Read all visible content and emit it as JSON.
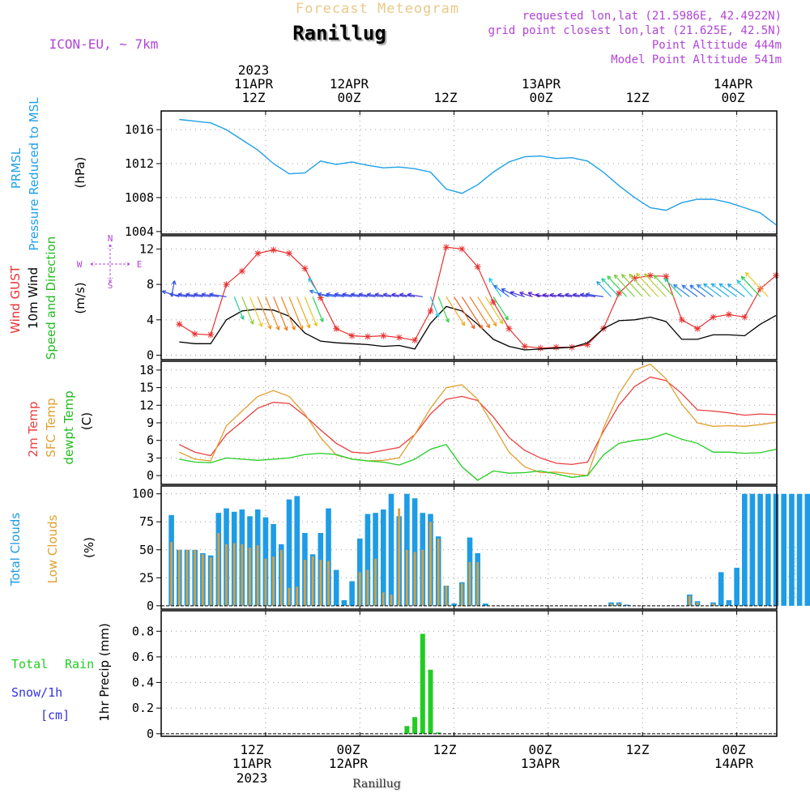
{
  "header": {
    "subtitle": "Forecast Meteogram",
    "station": "Ranillug",
    "model": "ICON-EU, ~ 7km",
    "requested": "requested lon,lat (21.5986E, 42.4922N)",
    "grid_point": "grid point closest lon,lat (21.625E, 42.5N)",
    "point_alt": "Point Altitude 444m",
    "model_alt": "Model Point Altitude 541m",
    "footer_station": "Ranillug",
    "watermark": "by Angel"
  },
  "time_axis": {
    "top_labels": [
      {
        "hour": 12,
        "lines": [
          "2023",
          "11APR",
          "12Z"
        ]
      },
      {
        "hour": 24,
        "lines": [
          "12APR",
          "00Z"
        ]
      },
      {
        "hour": 36,
        "lines": [
          "12Z"
        ]
      },
      {
        "hour": 48,
        "lines": [
          "13APR",
          "00Z"
        ]
      },
      {
        "hour": 60,
        "lines": [
          "12Z"
        ]
      },
      {
        "hour": 72,
        "lines": [
          "14APR",
          "00Z"
        ]
      }
    ],
    "bottom_labels": [
      {
        "hour": 12,
        "lines": [
          "12Z",
          "11APR",
          "2023"
        ]
      },
      {
        "hour": 24,
        "lines": [
          "00Z",
          "12APR"
        ]
      },
      {
        "hour": 36,
        "lines": [
          "12Z"
        ]
      },
      {
        "hour": 48,
        "lines": [
          "00Z",
          "13APR"
        ]
      },
      {
        "hour": 60,
        "lines": [
          "12Z"
        ]
      },
      {
        "hour": 72,
        "lines": [
          "00Z",
          "14APR"
        ]
      }
    ],
    "start": "2023-04-11 00Z",
    "range_hours": [
      1,
      77
    ]
  },
  "colors": {
    "pressure": "#1fa0e8",
    "gust": "#e83030",
    "wind": "#000000",
    "temp2m": "#e84040",
    "sfc": "#e0a030",
    "dewpt": "#22cc22",
    "total_cloud": "#1e9ce6",
    "low_cloud": "#d8a040",
    "rain": "#22cc22",
    "snow": "#3333dd",
    "label_purple": "#b044d8",
    "label_orange": "#e0b050"
  },
  "panels": {
    "pressure": {
      "labels": [
        "PRMSL",
        "Pressure Reduced to MSL"
      ],
      "unit": "(hPa)",
      "ticks": [
        "1004",
        "1008",
        "1012",
        "1016"
      ]
    },
    "wind": {
      "labels": [
        "Wind GUST",
        "10m Wind",
        "Speed and Direction"
      ],
      "unit": "(m/s)",
      "ticks": [
        "0",
        "4",
        "8",
        "12"
      ],
      "compass": {
        "n": "N",
        "s": "S",
        "w": "W",
        "e": "E"
      }
    },
    "temp": {
      "labels": [
        "2m Temp",
        "SFC Temp",
        "dewpt Temp"
      ],
      "unit": "(C)",
      "ticks": [
        "0",
        "3",
        "6",
        "9",
        "12",
        "15",
        "18"
      ]
    },
    "clouds": {
      "labels": [
        "Total Clouds",
        "Low Clouds"
      ],
      "unit": "(%)",
      "ticks": [
        "0",
        "25",
        "50",
        "75",
        "100"
      ]
    },
    "precip": {
      "labels": [
        "Total",
        "Rain",
        "Snow/1h",
        "[cm]"
      ],
      "unit": "1hr Precip (mm)",
      "ticks": [
        "0",
        "0.2",
        "0.4",
        "0.6",
        "0.8"
      ]
    }
  },
  "chart_data": [
    {
      "type": "line",
      "title": "PRMSL Pressure Reduced to MSL",
      "ylabel": "hPa",
      "ylim": [
        1003.7,
        1018.2
      ],
      "x": [
        1,
        3,
        5,
        7,
        9,
        11,
        13,
        15,
        17,
        19,
        21,
        23,
        25,
        27,
        29,
        31,
        33,
        35,
        37,
        39,
        41,
        43,
        45,
        47,
        49,
        51,
        53,
        55,
        57,
        59,
        61,
        63,
        65,
        67,
        69,
        71,
        73,
        75,
        77
      ],
      "values": [
        1017.2,
        1017.0,
        1016.8,
        1016.0,
        1014.8,
        1013.6,
        1012.0,
        1010.8,
        1010.9,
        1012.3,
        1011.9,
        1012.2,
        1011.8,
        1011.5,
        1011.6,
        1011.4,
        1011.0,
        1009.0,
        1008.5,
        1009.5,
        1011.0,
        1012.2,
        1012.8,
        1012.9,
        1012.6,
        1012.7,
        1012.3,
        1011.0,
        1009.4,
        1008.0,
        1006.8,
        1006.5,
        1007.4,
        1007.8,
        1007.8,
        1007.4,
        1006.8,
        1006.2,
        1004.8
      ]
    },
    {
      "type": "line",
      "title": "Wind GUST / 10m Wind",
      "ylabel": "m/s",
      "ylim": [
        -0.5,
        13.5
      ],
      "x": [
        1,
        3,
        5,
        7,
        9,
        11,
        13,
        15,
        17,
        19,
        21,
        23,
        25,
        27,
        29,
        31,
        33,
        35,
        37,
        39,
        41,
        43,
        45,
        47,
        49,
        51,
        53,
        55,
        57,
        59,
        61,
        63,
        65,
        67,
        69,
        71,
        73,
        75,
        77
      ],
      "series": [
        {
          "name": "Wind GUST",
          "values": [
            3.5,
            2.4,
            2.3,
            8.0,
            9.5,
            11.5,
            11.9,
            11.5,
            9.8,
            6.5,
            3.0,
            2.2,
            2.1,
            2.2,
            2.0,
            1.7,
            5.0,
            12.2,
            12.0,
            10.0,
            6.0,
            3.0,
            1.0,
            0.8,
            0.9,
            0.9,
            1.2,
            3.0,
            7.0,
            8.7,
            9.0,
            8.9,
            4.0,
            3.0,
            4.3,
            4.6,
            4.3,
            7.5,
            9.0
          ]
        },
        {
          "name": "10m Wind",
          "values": [
            1.5,
            1.3,
            1.3,
            4.0,
            5.0,
            5.2,
            5.1,
            4.4,
            2.5,
            1.6,
            1.4,
            1.3,
            1.2,
            1.0,
            1.1,
            0.7,
            3.6,
            5.5,
            5.0,
            3.5,
            1.8,
            1.0,
            0.6,
            0.7,
            0.8,
            0.9,
            1.4,
            3.0,
            3.9,
            4.0,
            4.3,
            3.8,
            1.8,
            1.8,
            2.3,
            2.3,
            2.2,
            3.5,
            4.5
          ]
        }
      ],
      "wind_arrows": {
        "hours": [
          0,
          1,
          2,
          3,
          4,
          5,
          6,
          7,
          8,
          9,
          10,
          11,
          12,
          13,
          14,
          15,
          16,
          17,
          18,
          19,
          20,
          21,
          22,
          23,
          24,
          25,
          26,
          27,
          28,
          29,
          30,
          31,
          32,
          33,
          34,
          35,
          36,
          37,
          38,
          39,
          40,
          41,
          42,
          43,
          44,
          45,
          46,
          47,
          48,
          49,
          50,
          51,
          52,
          53,
          54,
          55,
          56,
          57,
          58,
          59,
          60,
          61,
          62,
          63,
          64,
          65,
          66,
          67,
          68,
          69,
          70,
          71,
          72,
          73,
          74,
          75,
          76
        ],
        "speed_ms": [
          1.5,
          1.5,
          1.4,
          1.3,
          1.3,
          1.3,
          1.3,
          1.3,
          3.0,
          4.0,
          4.5,
          5.0,
          5.2,
          5.3,
          5.2,
          5.1,
          4.8,
          4.4,
          3.5,
          2.5,
          1.8,
          1.6,
          1.5,
          1.4,
          1.4,
          1.3,
          1.3,
          1.2,
          1.2,
          1.1,
          1.0,
          1.0,
          1.0,
          2.5,
          3.6,
          4.8,
          5.5,
          5.5,
          5.3,
          4.9,
          4.4,
          3.5,
          2.5,
          1.8,
          1.4,
          1.0,
          0.7,
          0.6,
          0.6,
          0.7,
          0.8,
          0.8,
          0.9,
          0.9,
          1.0,
          1.4,
          2.2,
          3.0,
          3.6,
          3.9,
          4.0,
          4.1,
          4.3,
          4.2,
          3.8,
          3.0,
          2.0,
          1.8,
          1.8,
          2.0,
          2.3,
          2.3,
          2.3,
          2.2,
          2.5,
          3.5,
          4.5
        ],
        "dir_deg": [
          190,
          110,
          100,
          100,
          100,
          100,
          100,
          100,
          340,
          340,
          340,
          340,
          340,
          340,
          340,
          340,
          340,
          340,
          340,
          150,
          110,
          100,
          100,
          100,
          100,
          100,
          100,
          100,
          100,
          100,
          100,
          100,
          100,
          340,
          340,
          330,
          330,
          330,
          330,
          330,
          330,
          330,
          150,
          130,
          120,
          110,
          110,
          110,
          100,
          100,
          100,
          100,
          100,
          100,
          100,
          100,
          140,
          140,
          140,
          140,
          140,
          140,
          140,
          140,
          140,
          140,
          130,
          130,
          130,
          130,
          130,
          130,
          130,
          130,
          140,
          140,
          140
        ]
      }
    },
    {
      "type": "line",
      "title": "2m Temp / SFC Temp / dewpt Temp",
      "ylabel": "C",
      "ylim": [
        -1.5,
        19.5
      ],
      "x": [
        1,
        3,
        5,
        7,
        9,
        11,
        13,
        15,
        17,
        19,
        21,
        23,
        25,
        27,
        29,
        31,
        33,
        35,
        37,
        39,
        41,
        43,
        45,
        47,
        49,
        51,
        53,
        55,
        57,
        59,
        61,
        63,
        65,
        67,
        69,
        71,
        73,
        75,
        77
      ],
      "series": [
        {
          "name": "2m Temp",
          "values": [
            5.3,
            4.0,
            3.4,
            7.0,
            9.2,
            11.5,
            12.5,
            12.3,
            10.2,
            7.8,
            5.5,
            4.0,
            3.8,
            4.3,
            4.8,
            7.0,
            10.5,
            13.0,
            13.5,
            12.8,
            10.0,
            6.5,
            4.3,
            3.0,
            2.1,
            1.9,
            2.3,
            7.5,
            12.0,
            15.2,
            16.8,
            16.2,
            14.0,
            11.2,
            11.0,
            10.7,
            10.3,
            10.5,
            10.4
          ]
        },
        {
          "name": "SFC Temp",
          "values": [
            4.0,
            2.8,
            2.5,
            8.5,
            11.0,
            13.5,
            14.5,
            13.5,
            10.5,
            6.5,
            3.5,
            2.8,
            2.5,
            2.6,
            3.0,
            7.0,
            11.5,
            15.0,
            15.5,
            13.0,
            8.5,
            4.0,
            1.5,
            0.5,
            0.6,
            0.3,
            0.0,
            8.0,
            14.0,
            18.0,
            19.0,
            16.5,
            12.2,
            9.0,
            8.4,
            8.5,
            8.4,
            8.7,
            9.1
          ]
        },
        {
          "name": "dewpt Temp",
          "values": [
            2.8,
            2.3,
            2.2,
            3.0,
            2.8,
            2.6,
            2.8,
            3.0,
            3.6,
            3.8,
            3.6,
            2.8,
            2.5,
            2.3,
            1.8,
            2.8,
            4.5,
            5.3,
            1.5,
            -0.8,
            0.8,
            0.4,
            0.5,
            0.8,
            0.3,
            -0.3,
            0.0,
            3.5,
            5.5,
            6.0,
            6.3,
            7.2,
            6.2,
            5.5,
            4.0,
            4.0,
            3.8,
            3.9,
            4.5
          ]
        }
      ]
    },
    {
      "type": "bar",
      "title": "Total Clouds / Low Clouds",
      "ylabel": "%",
      "ylim": [
        -3,
        107
      ],
      "start_hour": 0,
      "series": [
        {
          "name": "Total Clouds",
          "values": [
            81,
            50,
            50,
            50,
            47,
            45,
            83,
            87,
            84,
            86,
            80,
            86,
            79,
            73,
            55,
            95,
            98,
            65,
            46,
            65,
            87,
            32,
            5,
            22,
            60,
            82,
            83,
            86,
            100,
            80,
            100,
            96,
            83,
            82,
            62,
            18,
            2,
            21,
            61,
            47,
            2,
            0,
            0,
            0,
            0,
            0,
            0,
            0,
            0,
            0,
            0,
            0,
            0,
            0,
            0,
            0,
            3,
            3,
            1,
            0,
            0,
            0,
            0,
            0,
            0,
            0,
            10,
            4,
            0,
            3,
            30,
            5,
            34,
            100,
            100,
            100,
            100,
            100,
            100,
            100,
            100,
            100,
            100,
            85
          ]
        },
        {
          "name": "Low Clouds",
          "values": [
            57,
            50,
            50,
            50,
            46,
            43,
            65,
            55,
            56,
            55,
            52,
            54,
            42,
            44,
            50,
            16,
            17,
            41,
            44,
            41,
            40,
            0,
            0,
            0,
            30,
            32,
            42,
            12,
            10,
            87,
            50,
            48,
            50,
            75,
            60,
            18,
            0,
            20,
            39,
            39,
            0,
            0,
            0,
            0,
            0,
            0,
            0,
            0,
            0,
            0,
            0,
            0,
            0,
            0,
            0,
            0,
            2,
            2,
            0,
            0,
            0,
            0,
            0,
            0,
            0,
            0,
            9,
            3,
            0,
            2,
            0,
            0,
            0,
            0,
            0,
            0,
            0,
            0,
            0,
            0,
            0,
            0,
            0,
            0
          ]
        }
      ]
    },
    {
      "type": "bar",
      "title": "1hr Precip",
      "ylabel": "mm",
      "ylim": [
        -0.02,
        0.96
      ],
      "series": [
        {
          "name": "Total Rain",
          "hours": [
            30,
            31,
            32,
            33,
            34
          ],
          "values": [
            0.06,
            0.13,
            0.78,
            0.5,
            0.01
          ]
        },
        {
          "name": "Snow/1h",
          "hours": [],
          "values": []
        }
      ]
    }
  ]
}
